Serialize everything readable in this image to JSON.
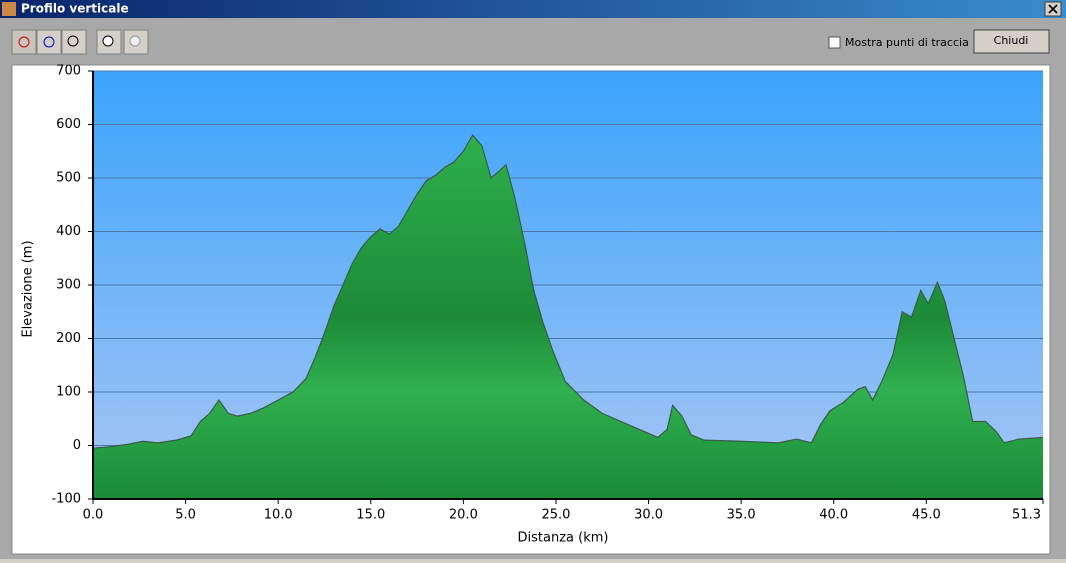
{
  "window": {
    "title": "Profilo verticale",
    "checkbox_label": "Mostra punti di traccia",
    "close_button": "Chiudi"
  },
  "chart_data": {
    "type": "area",
    "xlabel": "Distanza   (km)",
    "ylabel": "Elevazione (m)",
    "x": [
      0,
      1,
      2,
      2.7,
      3.5,
      4.5,
      5.3,
      5.8,
      6.3,
      6.8,
      7.3,
      7.8,
      8.5,
      9.2,
      10,
      10.8,
      11.5,
      12,
      12.5,
      13,
      13.5,
      14,
      14.5,
      15,
      15.5,
      16,
      16.5,
      17,
      17.5,
      18,
      18.5,
      19,
      19.5,
      20,
      20.5,
      21,
      21.5,
      22,
      22.3,
      22.8,
      23.3,
      23.8,
      24.3,
      24.8,
      25.5,
      26.5,
      27.5,
      28.5,
      29.5,
      30.5,
      31,
      31.3,
      31.8,
      32.3,
      33,
      35,
      37,
      38,
      38.8,
      39.3,
      39.8,
      40.5,
      41.3,
      41.7,
      42.1,
      42.6,
      43.2,
      43.7,
      44.2,
      44.7,
      45.1,
      45.6,
      46,
      46.5,
      47,
      47.5,
      48.2,
      48.8,
      49.2,
      50,
      51.3
    ],
    "values": [
      -5,
      -2,
      3,
      8,
      5,
      10,
      18,
      45,
      60,
      85,
      60,
      55,
      60,
      70,
      85,
      100,
      125,
      165,
      210,
      260,
      300,
      340,
      370,
      390,
      405,
      395,
      410,
      440,
      470,
      495,
      505,
      520,
      530,
      550,
      580,
      560,
      500,
      515,
      525,
      460,
      380,
      290,
      230,
      180,
      120,
      85,
      60,
      45,
      30,
      15,
      30,
      75,
      55,
      20,
      10,
      8,
      5,
      12,
      5,
      40,
      65,
      80,
      105,
      110,
      85,
      120,
      170,
      250,
      240,
      290,
      265,
      305,
      270,
      200,
      130,
      45,
      45,
      25,
      5,
      12,
      15
    ],
    "xlim": [
      0,
      51.3
    ],
    "ylim": [
      -100,
      700
    ],
    "xticks": [
      {
        "value": 0,
        "label": "0.0"
      },
      {
        "value": 5,
        "label": "5.0"
      },
      {
        "value": 10,
        "label": "10.0"
      },
      {
        "value": 15,
        "label": "15.0"
      },
      {
        "value": 20,
        "label": "20.0"
      },
      {
        "value": 25,
        "label": "25.0"
      },
      {
        "value": 30,
        "label": "30.0"
      },
      {
        "value": 35,
        "label": "35.0"
      },
      {
        "value": 40,
        "label": "40.0"
      },
      {
        "value": 45,
        "label": "45.0"
      },
      51.3
    ],
    "yticks": [
      -100,
      0,
      100,
      200,
      300,
      400,
      500,
      600,
      700
    ],
    "grid": true,
    "color": "#1f9a3e"
  }
}
